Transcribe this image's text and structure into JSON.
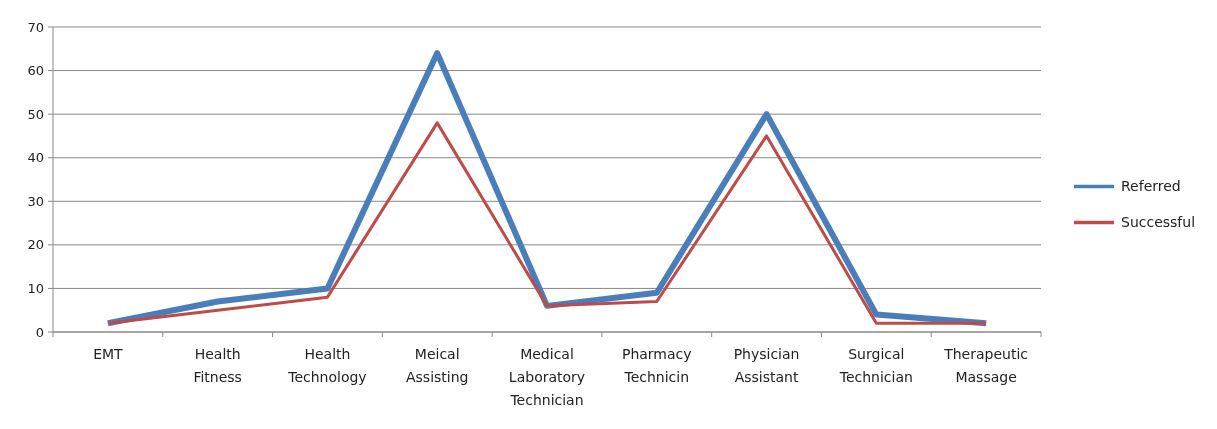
{
  "chart_data": {
    "type": "line",
    "categories": [
      "EMT",
      "Health Fitness",
      "Health Technology",
      "Meical Assisting",
      "Medical Laboratory Technician",
      "Pharmacy Technicin",
      "Physician Assistant",
      "Surgical Technician",
      "Therapeutic Massage"
    ],
    "series": [
      {
        "name": "Referred",
        "color": "#4a7ebb",
        "values": [
          2,
          7,
          10,
          64,
          6,
          9,
          50,
          4,
          2
        ]
      },
      {
        "name": "Successful",
        "color": "#be4b48",
        "values": [
          2,
          5,
          8,
          48,
          6,
          7,
          45,
          2,
          2
        ]
      }
    ],
    "ylim": [
      0,
      70
    ],
    "yticks": [
      0,
      10,
      20,
      30,
      40,
      50,
      60,
      70
    ],
    "grid": "y",
    "legend": "right",
    "marker": "none",
    "line_style": "solid"
  }
}
